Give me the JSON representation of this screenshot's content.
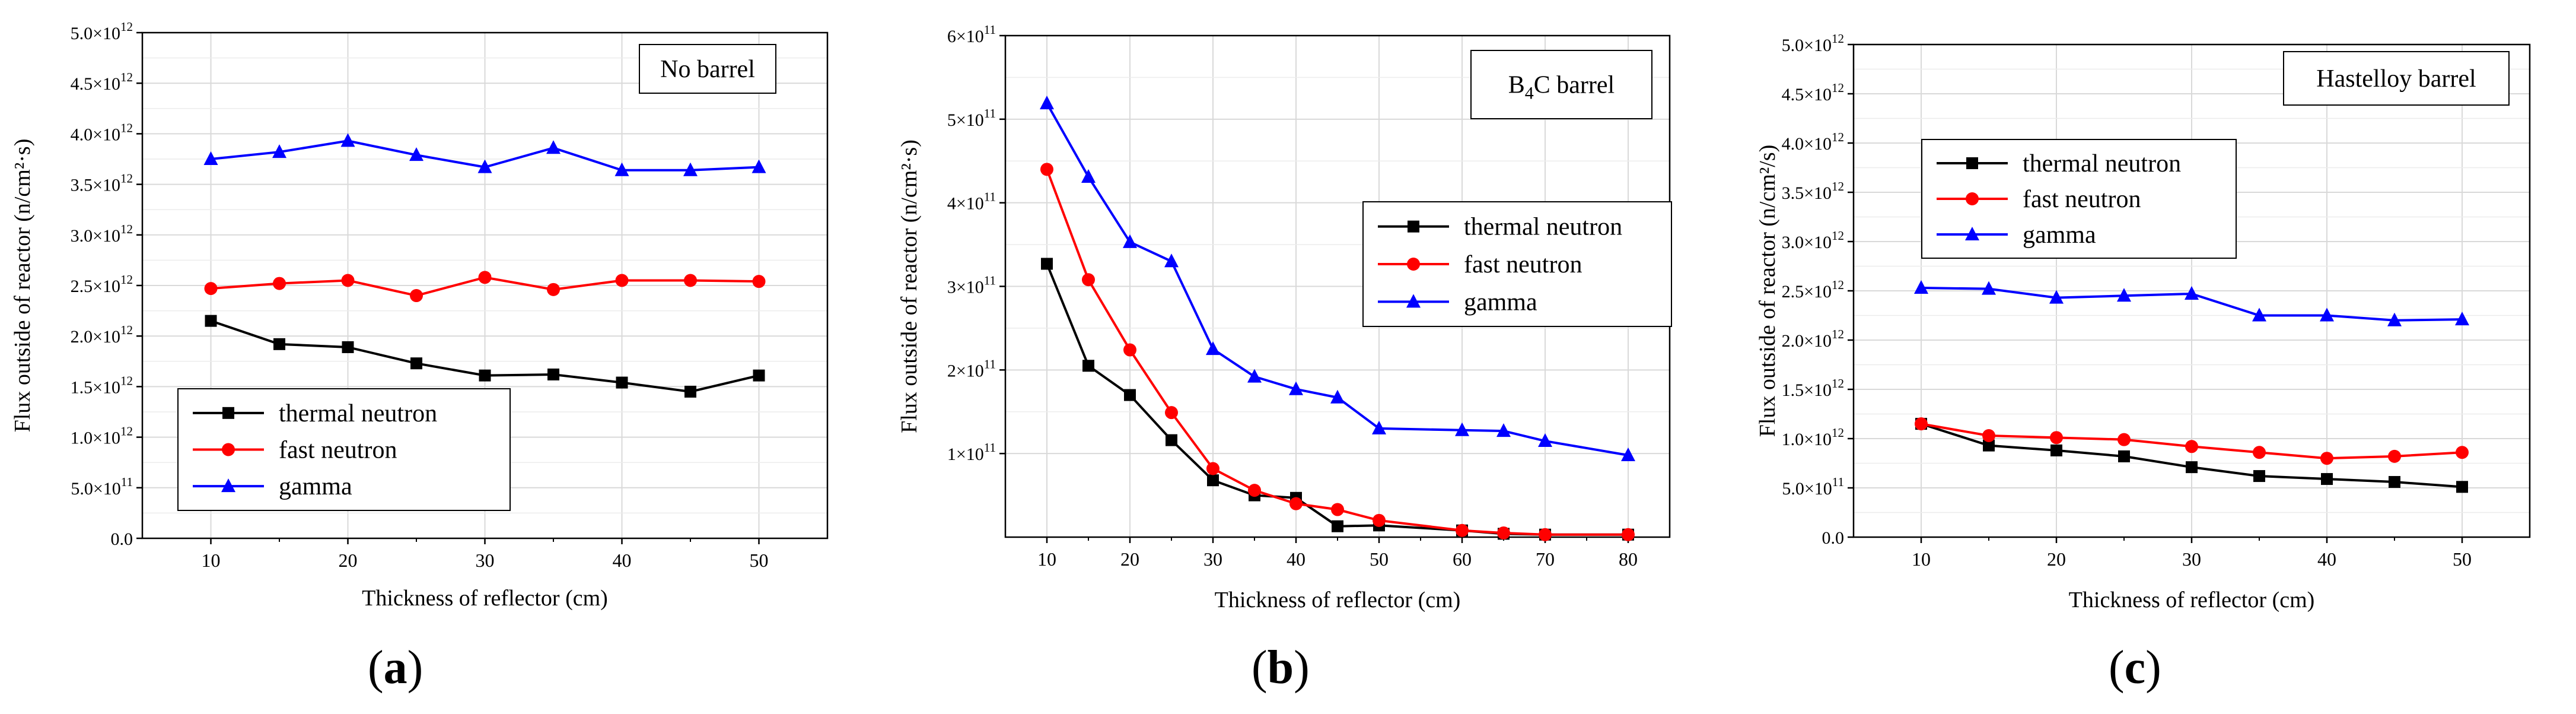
{
  "colors": {
    "thermal": "#000000",
    "fast": "#ff0000",
    "gamma": "#0000ff",
    "grid": "#d9d9d9"
  },
  "panel_labels": [
    "a",
    "b",
    "c"
  ],
  "chart_data": [
    {
      "id": "a",
      "type": "line",
      "tag": "No barrel",
      "tag_sub": "",
      "tag_rest": "",
      "xlabel": "Thickness of reflector (cm)",
      "ylabel": "Flux outside of reactor (n/cm²·s)",
      "xlim": [
        5,
        55
      ],
      "x_ticks": [
        10,
        20,
        30,
        40,
        50
      ],
      "ylim": [
        0,
        5000000000000.0
      ],
      "y_ticks": [
        0,
        500000000000.0,
        1000000000000.0,
        1500000000000.0,
        2000000000000.0,
        2500000000000.0,
        3000000000000.0,
        3500000000000.0,
        4000000000000.0,
        4500000000000.0,
        5000000000000.0
      ],
      "y_tick_labels": [
        {
          "mant": "0.0",
          "exp": ""
        },
        {
          "mant": "5.0×10",
          "exp": "11"
        },
        {
          "mant": "1.0×10",
          "exp": "12"
        },
        {
          "mant": "1.5×10",
          "exp": "12"
        },
        {
          "mant": "2.0×10",
          "exp": "12"
        },
        {
          "mant": "2.5×10",
          "exp": "12"
        },
        {
          "mant": "3.0×10",
          "exp": "12"
        },
        {
          "mant": "3.5×10",
          "exp": "12"
        },
        {
          "mant": "4.0×10",
          "exp": "12"
        },
        {
          "mant": "4.5×10",
          "exp": "12"
        },
        {
          "mant": "5.0×10",
          "exp": "12"
        }
      ],
      "x": [
        10,
        15,
        20,
        25,
        30,
        35,
        40,
        45,
        50
      ],
      "series": [
        {
          "name": "thermal neutron",
          "key": "thermal",
          "marker": "square",
          "values": [
            2150000000000.0,
            1920000000000.0,
            1890000000000.0,
            1730000000000.0,
            1610000000000.0,
            1620000000000.0,
            1540000000000.0,
            1450000000000.0,
            1610000000000.0
          ]
        },
        {
          "name": "fast neutron",
          "key": "fast",
          "marker": "circle",
          "values": [
            2470000000000.0,
            2520000000000.0,
            2550000000000.0,
            2400000000000.0,
            2580000000000.0,
            2460000000000.0,
            2550000000000.0,
            2550000000000.0,
            2540000000000.0
          ]
        },
        {
          "name": "gamma",
          "key": "gamma",
          "marker": "triangle",
          "values": [
            3750000000000.0,
            3820000000000.0,
            3930000000000.0,
            3790000000000.0,
            3670000000000.0,
            3860000000000.0,
            3640000000000.0,
            3640000000000.0,
            3670000000000.0
          ]
        }
      ],
      "legend_position": "bottom-left"
    },
    {
      "id": "b",
      "type": "line",
      "tag": "B",
      "tag_sub": "4",
      "tag_rest": "C  barrel",
      "xlabel": "Thickness of reflector (cm)",
      "ylabel": "Flux outside of reactor (n/cm²·s)",
      "xlim": [
        5,
        85
      ],
      "x_ticks": [
        10,
        20,
        30,
        40,
        50,
        60,
        70,
        80
      ],
      "ylim": [
        0,
        600000000000.0
      ],
      "y_ticks": [
        100000000000.0,
        200000000000.0,
        300000000000.0,
        400000000000.0,
        500000000000.0,
        600000000000.0
      ],
      "y_tick_labels": [
        {
          "mant": "1×10",
          "exp": "11"
        },
        {
          "mant": "2×10",
          "exp": "11"
        },
        {
          "mant": "3×10",
          "exp": "11"
        },
        {
          "mant": "4×10",
          "exp": "11"
        },
        {
          "mant": "5×10",
          "exp": "11"
        },
        {
          "mant": "6×10",
          "exp": "11"
        }
      ],
      "x": [
        10,
        15,
        20,
        25,
        30,
        35,
        40,
        45,
        50,
        60,
        65,
        70,
        80
      ],
      "series": [
        {
          "name": "thermal neutron",
          "key": "thermal",
          "marker": "square",
          "values": [
            327000000000.0,
            205000000000.0,
            170000000000.0,
            116000000000.0,
            68000000000.0,
            50000000000.0,
            47000000000.0,
            13000000000.0,
            14000000000.0,
            8000000000.0,
            4000000000.0,
            3000000000.0,
            3000000000.0
          ]
        },
        {
          "name": "fast neutron",
          "key": "fast",
          "marker": "circle",
          "values": [
            440000000000.0,
            308000000000.0,
            224000000000.0,
            149000000000.0,
            82000000000.0,
            56000000000.0,
            40000000000.0,
            33000000000.0,
            20000000000.0,
            8000000000.0,
            5000000000.0,
            3000000000.0,
            3000000000.0
          ]
        },
        {
          "name": "gamma",
          "key": "gamma",
          "marker": "triangle",
          "values": [
            519000000000.0,
            431000000000.0,
            353000000000.0,
            330000000000.0,
            225000000000.0,
            192000000000.0,
            177000000000.0,
            167000000000.0,
            130000000000.0,
            128000000000.0,
            127000000000.0,
            115000000000.0,
            98000000000.0
          ]
        }
      ],
      "legend_position": "middle-right"
    },
    {
      "id": "c",
      "type": "line",
      "tag": "Hastelloy barrel",
      "tag_sub": "",
      "tag_rest": "",
      "xlabel": "Thickness of reflector (cm)",
      "ylabel": "Flux outside of reactor (n/cm²/s)",
      "xlim": [
        5,
        55
      ],
      "x_ticks": [
        10,
        20,
        30,
        40,
        50
      ],
      "ylim": [
        0,
        5000000000000.0
      ],
      "y_ticks": [
        0,
        500000000000.0,
        1000000000000.0,
        1500000000000.0,
        2000000000000.0,
        2500000000000.0,
        3000000000000.0,
        3500000000000.0,
        4000000000000.0,
        4500000000000.0,
        5000000000000.0
      ],
      "y_tick_labels": [
        {
          "mant": "0.0",
          "exp": ""
        },
        {
          "mant": "5.0×10",
          "exp": "11"
        },
        {
          "mant": "1.0×10",
          "exp": "12"
        },
        {
          "mant": "1.5×10",
          "exp": "12"
        },
        {
          "mant": "2.0×10",
          "exp": "12"
        },
        {
          "mant": "2.5×10",
          "exp": "12"
        },
        {
          "mant": "3.0×10",
          "exp": "12"
        },
        {
          "mant": "3.5×10",
          "exp": "12"
        },
        {
          "mant": "4.0×10",
          "exp": "12"
        },
        {
          "mant": "4.5×10",
          "exp": "12"
        },
        {
          "mant": "5.0×10",
          "exp": "12"
        }
      ],
      "x": [
        10,
        15,
        20,
        25,
        30,
        35,
        40,
        45,
        50
      ],
      "series": [
        {
          "name": "thermal neutron",
          "key": "thermal",
          "marker": "square",
          "values": [
            1150000000000.0,
            930000000000.0,
            880000000000.0,
            820000000000.0,
            710000000000.0,
            620000000000.0,
            590000000000.0,
            560000000000.0,
            510000000000.0
          ]
        },
        {
          "name": "fast neutron",
          "key": "fast",
          "marker": "circle",
          "values": [
            1150000000000.0,
            1030000000000.0,
            1010000000000.0,
            990000000000.0,
            920000000000.0,
            860000000000.0,
            800000000000.0,
            820000000000.0,
            860000000000.0
          ]
        },
        {
          "name": "gamma",
          "key": "gamma",
          "marker": "triangle",
          "values": [
            2530000000000.0,
            2520000000000.0,
            2430000000000.0,
            2450000000000.0,
            2470000000000.0,
            2250000000000.0,
            2250000000000.0,
            2200000000000.0,
            2210000000000.0
          ]
        }
      ],
      "legend_position": "top-left"
    }
  ]
}
